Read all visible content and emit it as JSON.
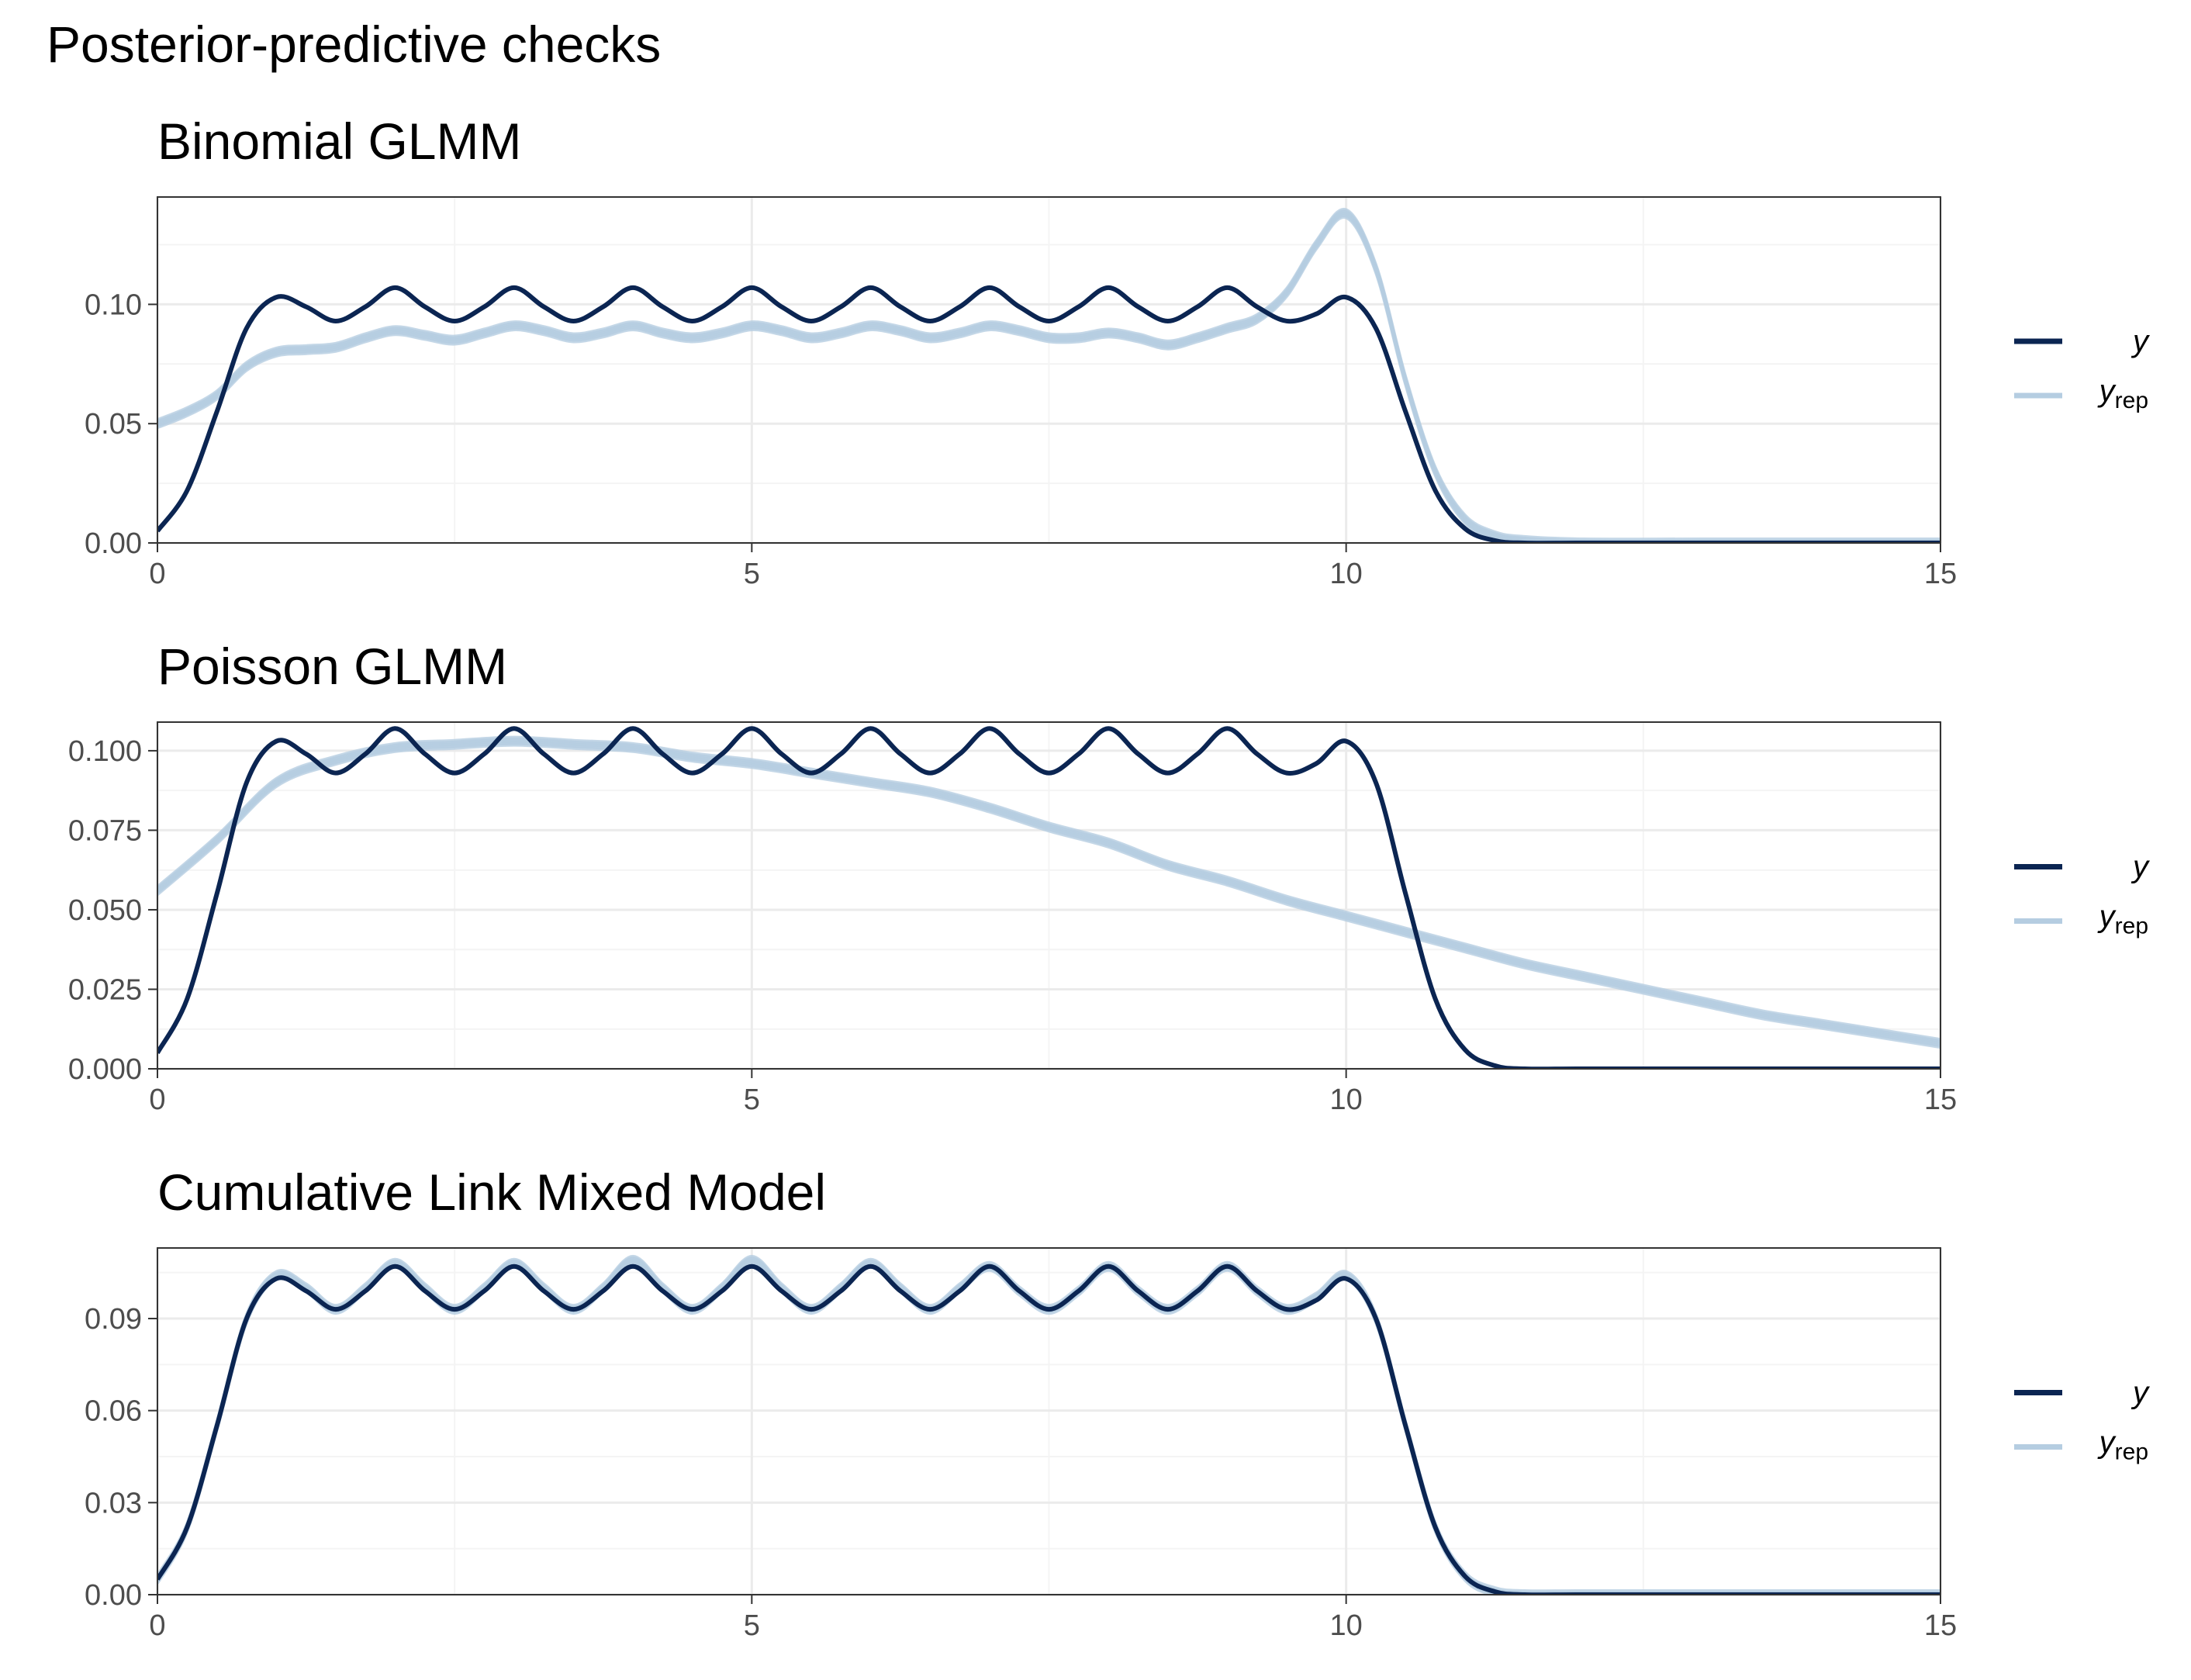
{
  "title": "Posterior-predictive checks",
  "colors": {
    "y": "#0b2552",
    "yrep": "#b5cde1",
    "grid_major": "#ebebeb",
    "grid_minor": "#f4f4f4",
    "border": "#333333"
  },
  "legend": {
    "y_label": "y",
    "yrep_label": "y",
    "yrep_sub": "rep",
    "placement": "right"
  },
  "chart_data": [
    {
      "type": "line",
      "title": "Binomial GLMM",
      "xlabel": "",
      "ylabel": "",
      "xlim": [
        0,
        15
      ],
      "ylim": [
        0,
        0.145
      ],
      "x_ticks": [
        0,
        5,
        10,
        15
      ],
      "x_tick_labels": [
        "0",
        "5",
        "10",
        "15"
      ],
      "y_ticks": [
        0,
        0.05,
        0.1
      ],
      "y_tick_labels": [
        "0.00",
        "0.05",
        "0.10"
      ],
      "grid": true,
      "series": [
        {
          "name": "y",
          "x": [
            0,
            0.25,
            0.5,
            0.75,
            1.0,
            1.25,
            1.5,
            1.75,
            2.0,
            2.25,
            2.5,
            2.75,
            3.0,
            3.25,
            3.5,
            3.75,
            4.0,
            4.25,
            4.5,
            4.75,
            5.0,
            5.25,
            5.5,
            5.75,
            6.0,
            6.25,
            6.5,
            6.75,
            7.0,
            7.25,
            7.5,
            7.75,
            8.0,
            8.25,
            8.5,
            8.75,
            9.0,
            9.25,
            9.5,
            9.75,
            10.0,
            10.25,
            10.5,
            10.75,
            11.0,
            11.25,
            11.5,
            12,
            13,
            14,
            15
          ],
          "y": [
            0.005,
            0.022,
            0.055,
            0.09,
            0.103,
            0.099,
            0.093,
            0.099,
            0.107,
            0.099,
            0.093,
            0.099,
            0.107,
            0.099,
            0.093,
            0.099,
            0.107,
            0.099,
            0.093,
            0.099,
            0.107,
            0.099,
            0.093,
            0.099,
            0.107,
            0.099,
            0.093,
            0.099,
            0.107,
            0.099,
            0.093,
            0.099,
            0.107,
            0.099,
            0.093,
            0.099,
            0.107,
            0.099,
            0.093,
            0.096,
            0.103,
            0.09,
            0.055,
            0.022,
            0.006,
            0.001,
            0.0,
            0,
            0,
            0,
            0
          ]
        },
        {
          "name": "y_rep",
          "x": [
            0,
            0.25,
            0.5,
            0.75,
            1.0,
            1.25,
            1.5,
            1.75,
            2.0,
            2.25,
            2.5,
            2.75,
            3.0,
            3.25,
            3.5,
            3.75,
            4.0,
            4.25,
            4.5,
            4.75,
            5.0,
            5.25,
            5.5,
            5.75,
            6.0,
            6.25,
            6.5,
            6.75,
            7.0,
            7.25,
            7.5,
            7.75,
            8.0,
            8.25,
            8.5,
            8.75,
            9.0,
            9.25,
            9.5,
            9.75,
            10.0,
            10.25,
            10.5,
            10.75,
            11.0,
            11.25,
            11.5,
            12,
            13,
            14,
            15
          ],
          "y": [
            0.05,
            0.055,
            0.062,
            0.074,
            0.08,
            0.081,
            0.082,
            0.086,
            0.089,
            0.087,
            0.085,
            0.088,
            0.091,
            0.089,
            0.086,
            0.088,
            0.091,
            0.088,
            0.086,
            0.088,
            0.091,
            0.089,
            0.086,
            0.088,
            0.091,
            0.089,
            0.086,
            0.088,
            0.091,
            0.089,
            0.086,
            0.086,
            0.088,
            0.086,
            0.083,
            0.086,
            0.09,
            0.094,
            0.105,
            0.125,
            0.138,
            0.115,
            0.068,
            0.03,
            0.01,
            0.003,
            0.001,
            0,
            0,
            0,
            0
          ]
        }
      ]
    },
    {
      "type": "line",
      "title": "Poisson GLMM",
      "xlabel": "",
      "ylabel": "",
      "xlim": [
        0,
        15
      ],
      "ylim": [
        0,
        0.109
      ],
      "x_ticks": [
        0,
        5,
        10,
        15
      ],
      "x_tick_labels": [
        "0",
        "5",
        "10",
        "15"
      ],
      "y_ticks": [
        0,
        0.025,
        0.05,
        0.075,
        0.1
      ],
      "y_tick_labels": [
        "0.000",
        "0.025",
        "0.050",
        "0.075",
        "0.100"
      ],
      "grid": true,
      "series": [
        {
          "name": "y",
          "x": [
            0,
            0.25,
            0.5,
            0.75,
            1.0,
            1.25,
            1.5,
            1.75,
            2.0,
            2.25,
            2.5,
            2.75,
            3.0,
            3.25,
            3.5,
            3.75,
            4.0,
            4.25,
            4.5,
            4.75,
            5.0,
            5.25,
            5.5,
            5.75,
            6.0,
            6.25,
            6.5,
            6.75,
            7.0,
            7.25,
            7.5,
            7.75,
            8.0,
            8.25,
            8.5,
            8.75,
            9.0,
            9.25,
            9.5,
            9.75,
            10.0,
            10.25,
            10.5,
            10.75,
            11.0,
            11.25,
            11.5,
            12,
            13,
            14,
            15
          ],
          "y": [
            0.005,
            0.022,
            0.055,
            0.09,
            0.103,
            0.099,
            0.093,
            0.099,
            0.107,
            0.099,
            0.093,
            0.099,
            0.107,
            0.099,
            0.093,
            0.099,
            0.107,
            0.099,
            0.093,
            0.099,
            0.107,
            0.099,
            0.093,
            0.099,
            0.107,
            0.099,
            0.093,
            0.099,
            0.107,
            0.099,
            0.093,
            0.099,
            0.107,
            0.099,
            0.093,
            0.099,
            0.107,
            0.099,
            0.093,
            0.096,
            0.103,
            0.09,
            0.055,
            0.022,
            0.006,
            0.001,
            0.0,
            0,
            0,
            0,
            0
          ]
        },
        {
          "name": "y_rep",
          "x": [
            0,
            0.5,
            1,
            1.5,
            2,
            2.5,
            3,
            3.5,
            4,
            4.5,
            5,
            5.5,
            6,
            6.5,
            7,
            7.5,
            8,
            8.5,
            9,
            9.5,
            10,
            10.5,
            11,
            11.5,
            12,
            12.5,
            13,
            13.5,
            14,
            14.5,
            15
          ],
          "y": [
            0.056,
            0.072,
            0.09,
            0.097,
            0.101,
            0.102,
            0.103,
            0.102,
            0.101,
            0.098,
            0.096,
            0.093,
            0.09,
            0.087,
            0.082,
            0.076,
            0.071,
            0.064,
            0.059,
            0.053,
            0.048,
            0.043,
            0.038,
            0.033,
            0.029,
            0.025,
            0.021,
            0.017,
            0.014,
            0.011,
            0.008
          ]
        }
      ]
    },
    {
      "type": "line",
      "title": "Cumulative Link Mixed Model",
      "xlabel": "",
      "ylabel": "",
      "xlim": [
        0,
        15
      ],
      "ylim": [
        0,
        0.113
      ],
      "x_ticks": [
        0,
        5,
        10,
        15
      ],
      "x_tick_labels": [
        "0",
        "5",
        "10",
        "15"
      ],
      "y_ticks": [
        0,
        0.03,
        0.06,
        0.09
      ],
      "y_tick_labels": [
        "0.00",
        "0.03",
        "0.06",
        "0.09"
      ],
      "grid": true,
      "series": [
        {
          "name": "y",
          "x": [
            0,
            0.25,
            0.5,
            0.75,
            1.0,
            1.25,
            1.5,
            1.75,
            2.0,
            2.25,
            2.5,
            2.75,
            3.0,
            3.25,
            3.5,
            3.75,
            4.0,
            4.25,
            4.5,
            4.75,
            5.0,
            5.25,
            5.5,
            5.75,
            6.0,
            6.25,
            6.5,
            6.75,
            7.0,
            7.25,
            7.5,
            7.75,
            8.0,
            8.25,
            8.5,
            8.75,
            9.0,
            9.25,
            9.5,
            9.75,
            10.0,
            10.25,
            10.5,
            10.75,
            11.0,
            11.25,
            11.5,
            12,
            13,
            14,
            15
          ],
          "y": [
            0.005,
            0.022,
            0.055,
            0.09,
            0.103,
            0.099,
            0.093,
            0.099,
            0.107,
            0.099,
            0.093,
            0.099,
            0.107,
            0.099,
            0.093,
            0.099,
            0.107,
            0.099,
            0.093,
            0.099,
            0.107,
            0.099,
            0.093,
            0.099,
            0.107,
            0.099,
            0.093,
            0.099,
            0.107,
            0.099,
            0.093,
            0.099,
            0.107,
            0.099,
            0.093,
            0.099,
            0.107,
            0.099,
            0.093,
            0.096,
            0.103,
            0.09,
            0.055,
            0.022,
            0.006,
            0.001,
            0.0,
            0,
            0,
            0,
            0
          ]
        },
        {
          "name": "y_rep",
          "x": [
            0,
            0.25,
            0.5,
            0.75,
            1.0,
            1.25,
            1.5,
            1.75,
            2.0,
            2.25,
            2.5,
            2.75,
            3.0,
            3.25,
            3.5,
            3.75,
            4.0,
            4.25,
            4.5,
            4.75,
            5.0,
            5.25,
            5.5,
            5.75,
            6.0,
            6.25,
            6.5,
            6.75,
            7.0,
            7.25,
            7.5,
            7.75,
            8.0,
            8.25,
            8.5,
            8.75,
            9.0,
            9.25,
            9.5,
            9.75,
            10.0,
            10.25,
            10.5,
            10.75,
            11.0,
            11.25,
            11.5,
            12,
            13,
            14,
            15
          ],
          "y": [
            0.005,
            0.022,
            0.055,
            0.09,
            0.104,
            0.1,
            0.093,
            0.1,
            0.108,
            0.1,
            0.093,
            0.1,
            0.108,
            0.1,
            0.093,
            0.1,
            0.109,
            0.1,
            0.093,
            0.1,
            0.109,
            0.1,
            0.093,
            0.1,
            0.108,
            0.1,
            0.093,
            0.1,
            0.107,
            0.099,
            0.093,
            0.099,
            0.107,
            0.099,
            0.093,
            0.099,
            0.107,
            0.099,
            0.093,
            0.097,
            0.104,
            0.09,
            0.055,
            0.022,
            0.006,
            0.001,
            0.0,
            0,
            0,
            0,
            0
          ]
        }
      ]
    }
  ]
}
